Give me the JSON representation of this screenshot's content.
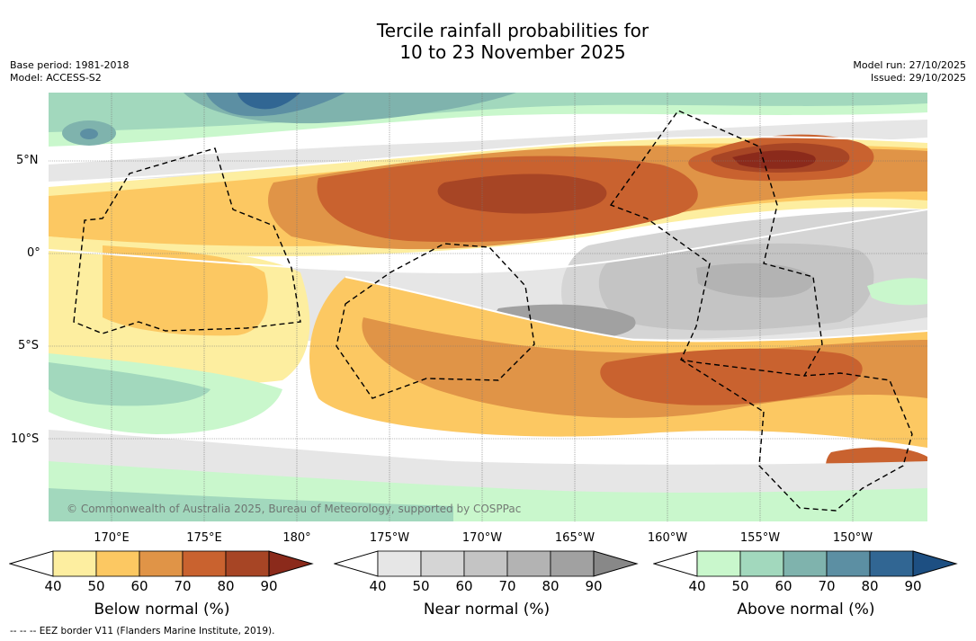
{
  "title_line1": "Tercile rainfall probabilities for",
  "title_line2": "10 to 23 November 2025",
  "meta": {
    "base_period": "Base period: 1981-2018",
    "model": "Model: ACCESS-S2",
    "model_run": "Model run: 27/10/2025",
    "issued": "Issued: 29/10/2025"
  },
  "lat_labels": [
    "5°N",
    "0°",
    "5°S",
    "10°S"
  ],
  "lon_labels": [
    "170°E",
    "175°E",
    "180°",
    "175°W",
    "170°W",
    "165°W",
    "160°W",
    "155°W",
    "150°W"
  ],
  "copyright": "© Commonwealth of Australia 2025, Bureau of Meteorology, supported by COSPPac",
  "footnote": "--  --  -- EEZ border V11 (Flanders Marine Institute, 2019).",
  "colorbars": [
    {
      "title": "Below normal (%)",
      "ticks": [
        "40",
        "50",
        "60",
        "70",
        "80",
        "90"
      ],
      "colors": [
        "#fdeea0",
        "#fcc862",
        "#e09447",
        "#c9622f",
        "#a74525",
        "#8b2a1b"
      ]
    },
    {
      "title": "Near normal (%)",
      "ticks": [
        "40",
        "50",
        "60",
        "70",
        "80",
        "90"
      ],
      "colors": [
        "#e6e6e6",
        "#d5d5d5",
        "#c4c4c4",
        "#b3b3b3",
        "#a1a1a1",
        "#888888"
      ]
    },
    {
      "title": "Above normal (%)",
      "ticks": [
        "40",
        "50",
        "60",
        "70",
        "80",
        "90"
      ],
      "colors": [
        "#c9f7cc",
        "#a2d8bd",
        "#7fb3ad",
        "#5c8fa3",
        "#316693",
        "#1d4f82"
      ]
    }
  ]
}
